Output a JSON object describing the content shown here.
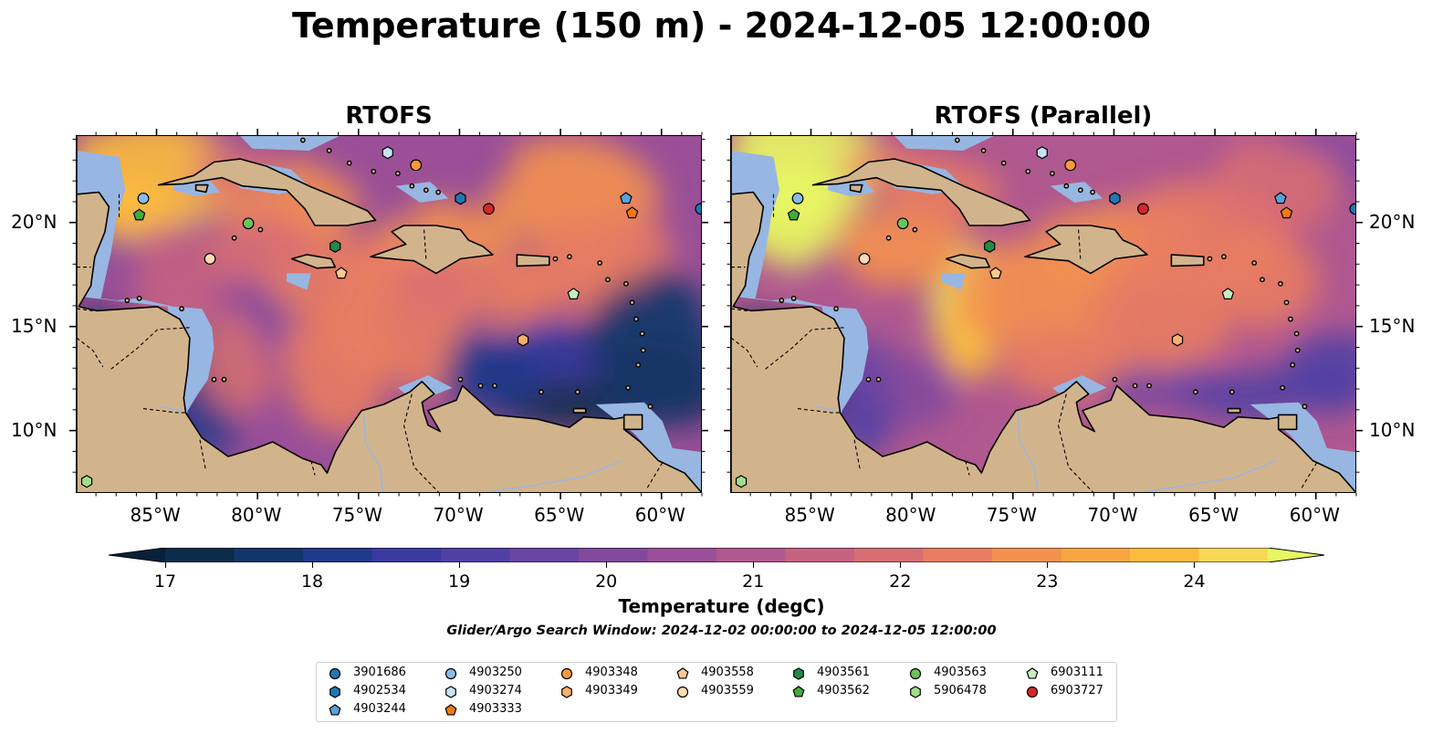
{
  "title": "Temperature (150 m) - 2024-12-05 12:00:00",
  "panels": [
    {
      "title": "RTOFS",
      "variant": "control"
    },
    {
      "title": "RTOFS (Parallel)",
      "variant": "parallel"
    }
  ],
  "axes": {
    "lon_ticks": [
      "85°W",
      "80°W",
      "75°W",
      "70°W",
      "65°W",
      "60°W"
    ],
    "lon_values": [
      -85,
      -80,
      -75,
      -70,
      -65,
      -60
    ],
    "lat_ticks": [
      "20°N",
      "15°N",
      "10°N"
    ],
    "lat_values": [
      20,
      15,
      10
    ],
    "lon_range": [
      -89,
      -58
    ],
    "lat_range": [
      7,
      24.2
    ]
  },
  "colorbar": {
    "label": "Temperature (degC)",
    "ticks": [
      "17",
      "18",
      "19",
      "20",
      "21",
      "22",
      "23",
      "24"
    ],
    "min": 17,
    "max": 24.5,
    "step": 0.5,
    "colors": [
      "#0b2c4a",
      "#13366a",
      "#1f3a8a",
      "#3a3aa0",
      "#5040a4",
      "#6a45a2",
      "#82499d",
      "#9a4f98",
      "#b05890",
      "#c56282",
      "#d86e73",
      "#e87d62",
      "#f39150",
      "#f9a541",
      "#fcbb3e",
      "#f7d854"
    ],
    "extend_low": "#06213a",
    "extend_high": "#e7f763"
  },
  "search_window": "Glider/Argo Search Window: 2024-12-02 00:00:00 to 2024-12-05 12:00:00",
  "legend": [
    {
      "id": "3901686",
      "marker": "circle",
      "color": "#1f77b4"
    },
    {
      "id": "4902534",
      "marker": "hexagon",
      "color": "#1f77b4"
    },
    {
      "id": "4903244",
      "marker": "pentagon",
      "color": "#5aa0d8"
    },
    {
      "id": "4903250",
      "marker": "circle",
      "color": "#89bde6"
    },
    {
      "id": "4903274",
      "marker": "hexagon",
      "color": "#c6e2f5"
    },
    {
      "id": "4903333",
      "marker": "pentagon",
      "color": "#f07a12"
    },
    {
      "id": "4903348",
      "marker": "circle",
      "color": "#fb9a3c"
    },
    {
      "id": "4903349",
      "marker": "hexagon",
      "color": "#fdae6b"
    },
    {
      "id": "4903558",
      "marker": "pentagon",
      "color": "#fdc891"
    },
    {
      "id": "4903559",
      "marker": "circle",
      "color": "#fddbb5"
    },
    {
      "id": "4903561",
      "marker": "hexagon",
      "color": "#238b45"
    },
    {
      "id": "4903562",
      "marker": "pentagon",
      "color": "#41ab3e"
    },
    {
      "id": "4903563",
      "marker": "circle",
      "color": "#6cc35a"
    },
    {
      "id": "5906478",
      "marker": "hexagon",
      "color": "#a1dd8c"
    },
    {
      "id": "6903111",
      "marker": "pentagon",
      "color": "#c7eec0"
    },
    {
      "id": "6903727",
      "marker": "circle",
      "color": "#d62728"
    }
  ],
  "floats": [
    {
      "id": "4903250",
      "lon": -85.7,
      "lat": 21.2
    },
    {
      "id": "4903562",
      "lon": -85.9,
      "lat": 20.4
    },
    {
      "id": "4903563",
      "lon": -80.5,
      "lat": 20.0
    },
    {
      "id": "4903559",
      "lon": -82.4,
      "lat": 18.3
    },
    {
      "id": "4903561",
      "lon": -76.2,
      "lat": 18.9
    },
    {
      "id": "4903558",
      "lon": -75.9,
      "lat": 17.6
    },
    {
      "id": "4903274",
      "lon": -73.6,
      "lat": 23.4
    },
    {
      "id": "4903348",
      "lon": -72.2,
      "lat": 22.8
    },
    {
      "id": "4902534",
      "lon": -70.0,
      "lat": 21.2
    },
    {
      "id": "6903727",
      "lon": -68.6,
      "lat": 20.7
    },
    {
      "id": "4903244",
      "lon": -61.8,
      "lat": 21.2
    },
    {
      "id": "4903333",
      "lon": -61.5,
      "lat": 20.5
    },
    {
      "id": "3901686",
      "lon": -58.1,
      "lat": 20.7
    },
    {
      "id": "6903111",
      "lon": -64.4,
      "lat": 16.6
    },
    {
      "id": "4903349",
      "lon": -66.9,
      "lat": 14.4
    },
    {
      "id": "5906478",
      "lon": -88.5,
      "lat": 7.6
    }
  ]
}
